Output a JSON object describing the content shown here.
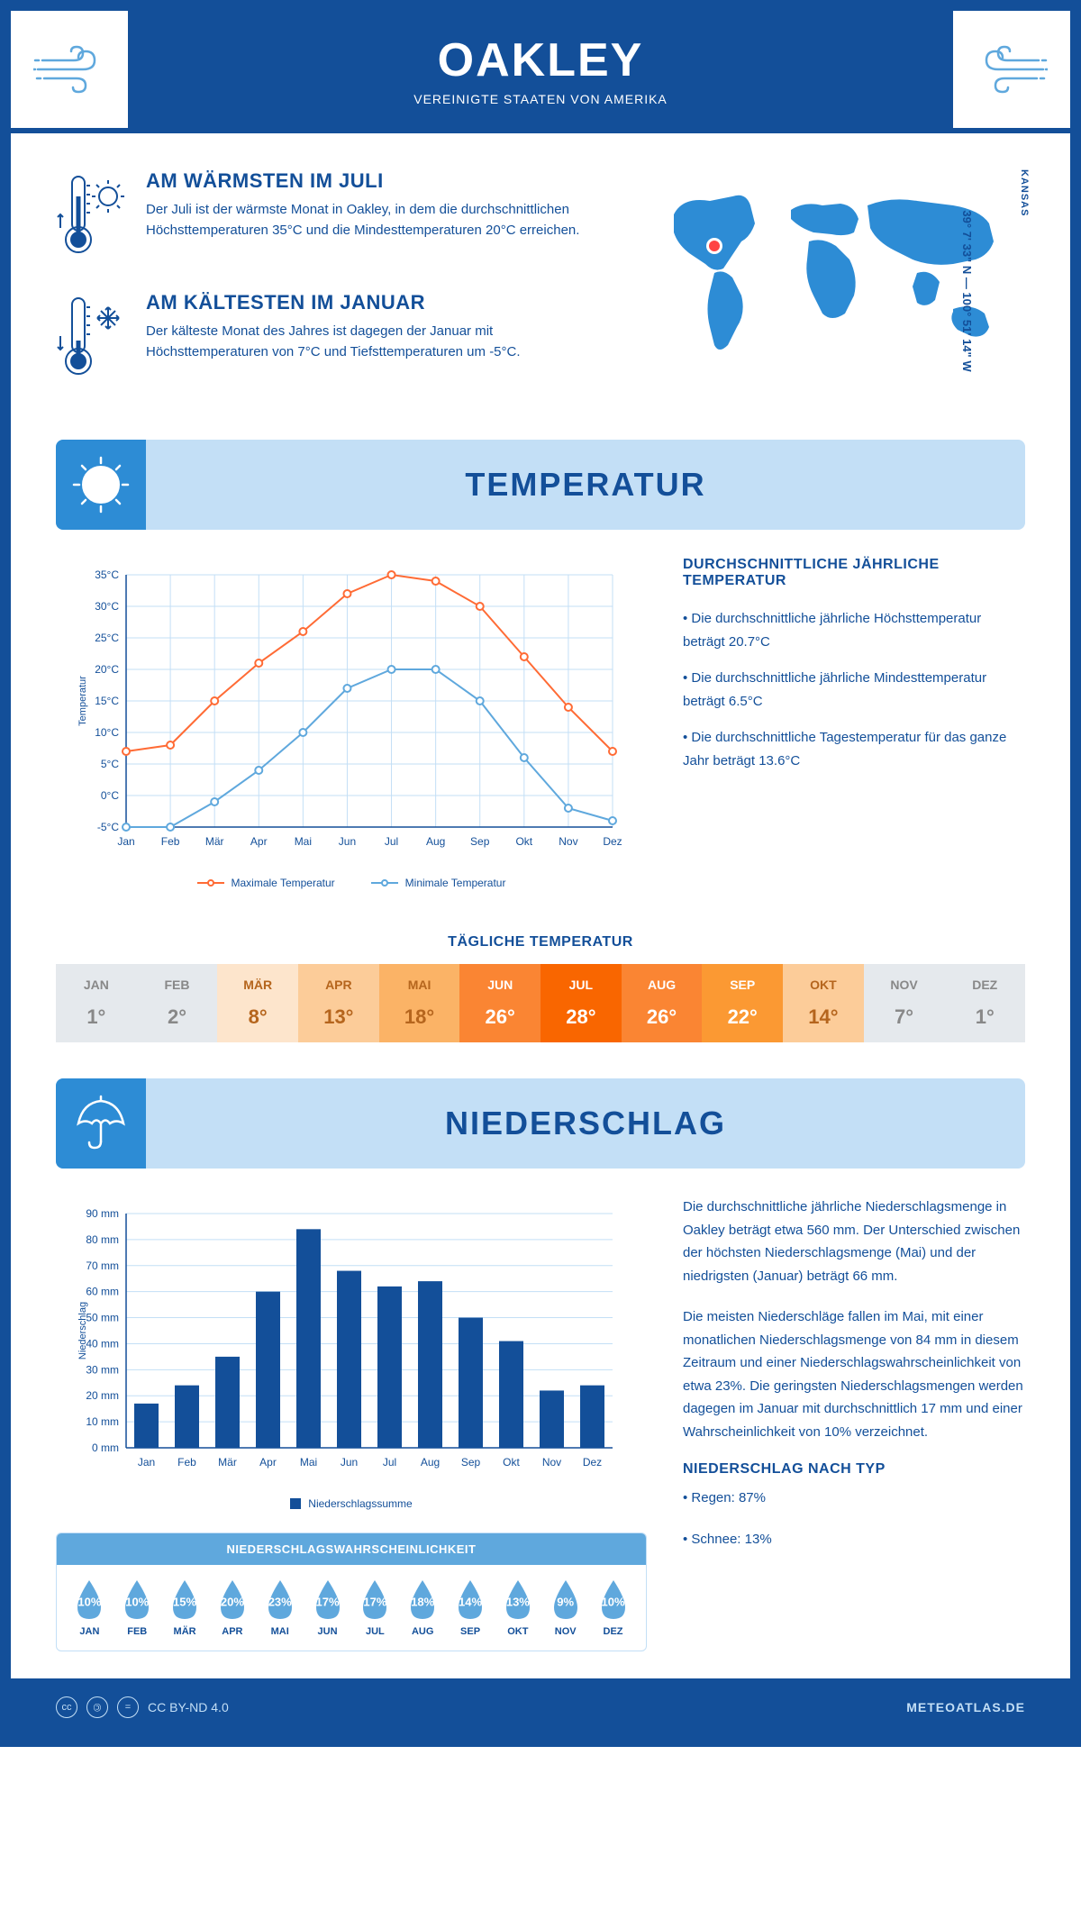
{
  "header": {
    "title": "OAKLEY",
    "subtitle": "VEREINIGTE STAATEN VON AMERIKA"
  },
  "location": {
    "state": "KANSAS",
    "coords": "39° 7' 33\" N — 100° 51' 14\" W"
  },
  "intro": {
    "warmest": {
      "title": "AM WÄRMSTEN IM JULI",
      "text": "Der Juli ist der wärmste Monat in Oakley, in dem die durchschnittlichen Höchsttemperaturen 35°C und die Mindesttemperaturen 20°C erreichen."
    },
    "coldest": {
      "title": "AM KÄLTESTEN IM JANUAR",
      "text": "Der kälteste Monat des Jahres ist dagegen der Januar mit Höchsttemperaturen von 7°C und Tiefsttemperaturen um -5°C."
    }
  },
  "temperature": {
    "section_title": "TEMPERATUR",
    "chart": {
      "months": [
        "Jan",
        "Feb",
        "Mär",
        "Apr",
        "Mai",
        "Jun",
        "Jul",
        "Aug",
        "Sep",
        "Okt",
        "Nov",
        "Dez"
      ],
      "max_temp": [
        7,
        8,
        15,
        21,
        26,
        32,
        35,
        34,
        30,
        22,
        14,
        7
      ],
      "min_temp": [
        -5,
        -5,
        -1,
        4,
        10,
        17,
        20,
        20,
        15,
        6,
        -2,
        -4
      ],
      "max_color": "#ff6b35",
      "min_color": "#5fa8dd",
      "ylim": [
        -5,
        35
      ],
      "ytick_step": 5,
      "ylabel": "Temperatur",
      "legend_max": "Maximale Temperatur",
      "legend_min": "Minimale Temperatur",
      "grid_color": "#c3dff6"
    },
    "info": {
      "title": "DURCHSCHNITTLICHE JÄHRLICHE TEMPERATUR",
      "bullet1": "• Die durchschnittliche jährliche Höchsttemperatur beträgt 20.7°C",
      "bullet2": "• Die durchschnittliche jährliche Mindesttemperatur beträgt 6.5°C",
      "bullet3": "• Die durchschnittliche Tagestemperatur für das ganze Jahr beträgt 13.6°C"
    },
    "daily": {
      "title": "TÄGLICHE TEMPERATUR",
      "months": [
        "JAN",
        "FEB",
        "MÄR",
        "APR",
        "MAI",
        "JUN",
        "JUL",
        "AUG",
        "SEP",
        "OKT",
        "NOV",
        "DEZ"
      ],
      "values": [
        "1°",
        "2°",
        "8°",
        "13°",
        "18°",
        "26°",
        "28°",
        "26°",
        "22°",
        "14°",
        "7°",
        "1°"
      ],
      "colors": [
        "#e5e9ed",
        "#e5e9ed",
        "#fde5cc",
        "#fccc99",
        "#fbb366",
        "#fa8533",
        "#f96600",
        "#fa8533",
        "#fb9933",
        "#fccc99",
        "#e5e9ed",
        "#e5e9ed"
      ],
      "text_colors": [
        "#888",
        "#888",
        "#b5651d",
        "#b5651d",
        "#b5651d",
        "#fff",
        "#fff",
        "#fff",
        "#fff",
        "#b5651d",
        "#888",
        "#888"
      ]
    }
  },
  "precipitation": {
    "section_title": "NIEDERSCHLAG",
    "chart": {
      "months": [
        "Jan",
        "Feb",
        "Mär",
        "Apr",
        "Mai",
        "Jun",
        "Jul",
        "Aug",
        "Sep",
        "Okt",
        "Nov",
        "Dez"
      ],
      "values": [
        17,
        24,
        35,
        60,
        84,
        68,
        62,
        64,
        50,
        41,
        22,
        24
      ],
      "ylim": [
        0,
        90
      ],
      "ytick_step": 10,
      "ylabel": "Niederschlag",
      "bar_color": "#134f99",
      "legend": "Niederschlagssumme",
      "grid_color": "#c3dff6"
    },
    "probability": {
      "title": "NIEDERSCHLAGSWAHRSCHEINLICHKEIT",
      "months": [
        "JAN",
        "FEB",
        "MÄR",
        "APR",
        "MAI",
        "JUN",
        "JUL",
        "AUG",
        "SEP",
        "OKT",
        "NOV",
        "DEZ"
      ],
      "values": [
        "10%",
        "10%",
        "15%",
        "20%",
        "23%",
        "17%",
        "17%",
        "18%",
        "14%",
        "13%",
        "9%",
        "10%"
      ],
      "drop_color": "#5fa8dd"
    },
    "text": {
      "para1": "Die durchschnittliche jährliche Niederschlagsmenge in Oakley beträgt etwa 560 mm. Der Unterschied zwischen der höchsten Niederschlagsmenge (Mai) und der niedrigsten (Januar) beträgt 66 mm.",
      "para2": "Die meisten Niederschläge fallen im Mai, mit einer monatlichen Niederschlagsmenge von 84 mm in diesem Zeitraum und einer Niederschlagswahrscheinlichkeit von etwa 23%. Die geringsten Niederschlagsmengen werden dagegen im Januar mit durchschnittlich 17 mm und einer Wahrscheinlichkeit von 10% verzeichnet.",
      "type_title": "NIEDERSCHLAG NACH TYP",
      "type_rain": "• Regen: 87%",
      "type_snow": "• Schnee: 13%"
    }
  },
  "footer": {
    "license": "CC BY-ND 4.0",
    "site": "METEOATLAS.DE"
  },
  "colors": {
    "primary": "#134f99",
    "secondary": "#5fa8dd",
    "light": "#c3dff6",
    "orange": "#ff6b35"
  }
}
